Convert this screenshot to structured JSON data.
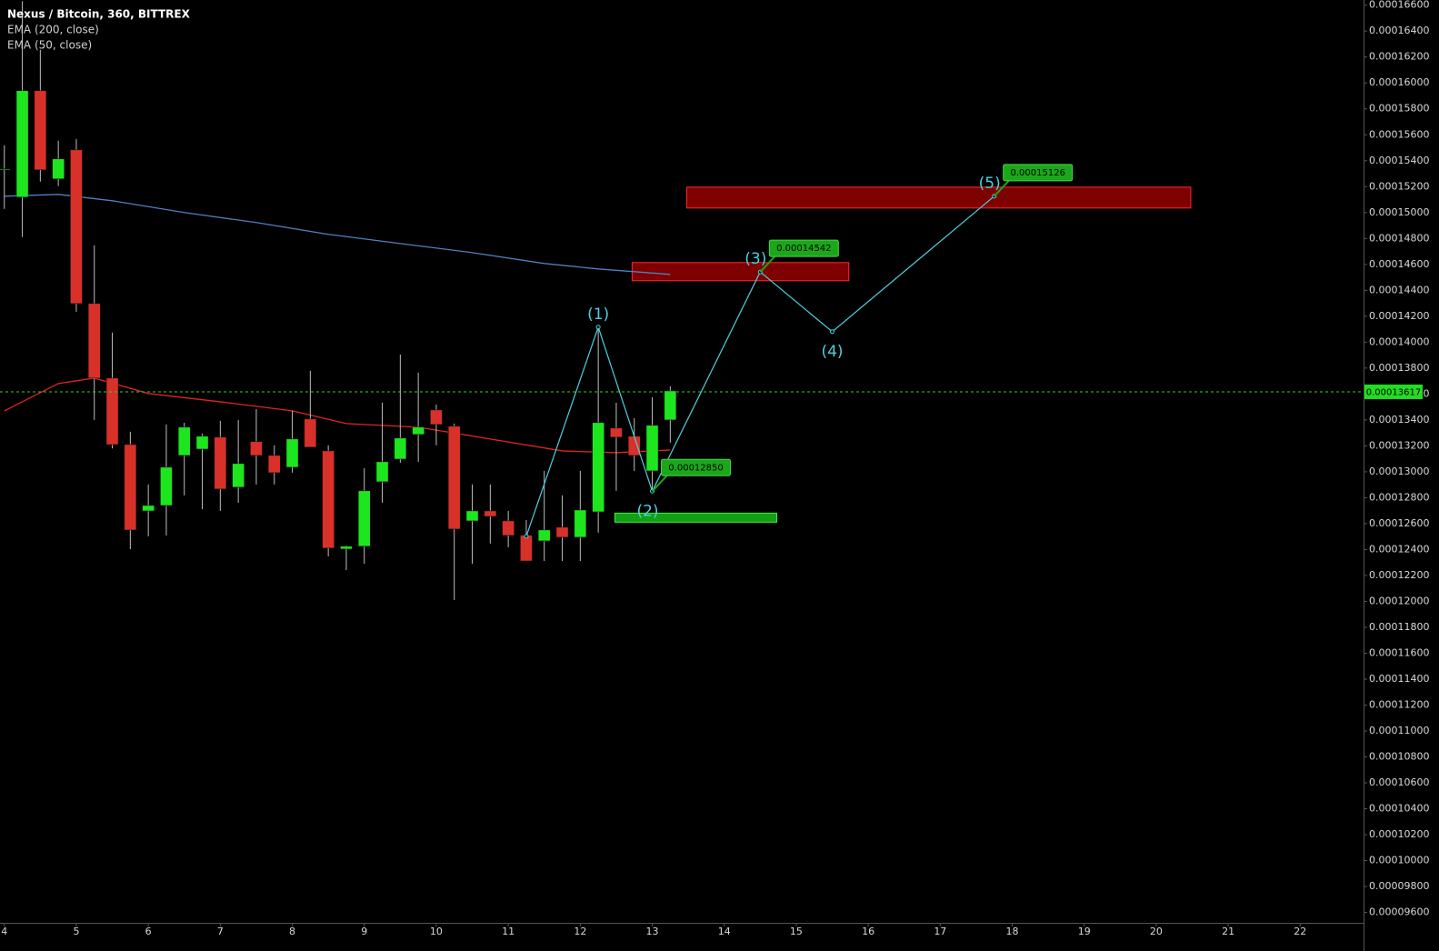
{
  "chart_data": {
    "type": "candlestick",
    "title": "Nexus / Bitcoin, 360, BITTREX",
    "x": [
      4,
      4.25,
      4.5,
      4.75,
      5,
      5.25,
      5.5,
      5.75,
      6,
      6.25,
      6.5,
      6.75,
      7,
      7.25,
      7.5,
      7.75,
      8,
      8.25,
      8.5,
      8.75,
      9,
      9.25,
      9.5,
      9.75,
      10,
      10.25,
      10.5,
      10.75,
      11,
      11.25,
      11.5,
      11.75,
      12,
      12.25,
      12.5,
      12.75,
      13,
      13.25
    ],
    "open": [
      0.0001533,
      0.00015119,
      0.0001594,
      0.0001526,
      0.00015484,
      0.00014298,
      0.00013723,
      0.0001321,
      0.00012698,
      0.0001274,
      0.00013126,
      0.00013175,
      0.00013267,
      0.00012881,
      0.00013232,
      0.00013126,
      0.00013035,
      0.00013407,
      0.00013161,
      0.00012404,
      0.00012425,
      0.00012923,
      0.00013098,
      0.00013288,
      0.00013477,
      0.00013351,
      0.00012621,
      0.00012698,
      0.00012621,
      0.00012509,
      0.00012467,
      0.00012572,
      0.00012495,
      0.00012691,
      0.00013337,
      0.00013274,
      0.00013007,
      0.000134
    ],
    "high": [
      0.00015519,
      0.0001663,
      0.00016256,
      0.00015554,
      0.00015568,
      0.00014747,
      0.00014074,
      0.00013309,
      0.00012902,
      0.00013365,
      0.00013379,
      0.00013295,
      0.00013393,
      0.000134,
      0.00013484,
      0.00013204,
      0.0001347,
      0.00013779,
      0.00013204,
      0.00012432,
      0.00013028,
      0.00013533,
      0.00013905,
      0.00013765,
      0.00013519,
      0.00013372,
      0.00012902,
      0.00012902,
      0.00012698,
      0.00012628,
      0.00013007,
      0.00012818,
      0.00013007,
      0.00014116,
      0.00013533,
      0.00013414,
      0.00013575,
      0.0001366
    ],
    "low": [
      0.00015028,
      0.00014811,
      0.00015239,
      0.00015204,
      0.00014235,
      0.000134,
      0.0001318,
      0.00012403,
      0.00012502,
      0.00012509,
      0.00012818,
      0.00012712,
      0.00012698,
      0.00012761,
      0.00012902,
      0.00012902,
      0.00012993,
      0.0001319,
      0.00012347,
      0.00012242,
      0.00012291,
      0.00012762,
      0.0001307,
      0.00013077,
      0.00013204,
      0.00012011,
      0.00012291,
      0.00012446,
      0.00012418,
      0.00012312,
      0.00012312,
      0.00012312,
      0.00012312,
      0.0001253,
      0.00012853,
      0.00013007,
      0.00012853,
      0.00013225
    ],
    "close": [
      0.00015337,
      0.0001594,
      0.0001533,
      0.00015414,
      0.00014298,
      0.00013723,
      0.0001321,
      0.00012551,
      0.0001274,
      0.00013035,
      0.00013344,
      0.00013274,
      0.00012867,
      0.00013063,
      0.00013126,
      0.00012993,
      0.00013253,
      0.0001319,
      0.00012411,
      0.00012425,
      0.00012853,
      0.00013077,
      0.0001326,
      0.00013344,
      0.00013365,
      0.00012558,
      0.00012698,
      0.00012656,
      0.00012509,
      0.00012312,
      0.00012551,
      0.00012495,
      0.00012705,
      0.00013379,
      0.00013267,
      0.00013126,
      0.00013358,
      0.00013624
    ],
    "up_color": "#1ee61e",
    "down_color": "#d8312a",
    "wick_color": "#bdbdbd",
    "series": [
      {
        "name": "EMA (200, close)",
        "color": "#4f7fc4",
        "x": [
          4,
          4.75,
          5.5,
          6.5,
          7.5,
          8.5,
          9.5,
          10.5,
          11.5,
          12.25,
          13.25
        ],
        "values": [
          0.00015126,
          0.0001514,
          0.00015091,
          0.00015,
          0.00014923,
          0.00014832,
          0.00014761,
          0.00014691,
          0.00014607,
          0.00014565,
          0.00014523
        ]
      },
      {
        "name": "EMA (50, close)",
        "color": "#e0261e",
        "x": [
          4,
          4.75,
          5.25,
          6,
          7,
          8,
          8.75,
          9.75,
          10.75,
          11.75,
          12.5,
          13.25
        ],
        "values": [
          0.0001347,
          0.00013681,
          0.00013723,
          0.00013604,
          0.0001354,
          0.0001347,
          0.00013372,
          0.00013344,
          0.00013253,
          0.00013161,
          0.00013147,
          0.00013168
        ]
      }
    ],
    "last_price": 0.00013617,
    "last_price_color": "#22dd22",
    "wave": {
      "color": "#4dd0e1",
      "x": [
        11.25,
        12.25,
        13,
        14.5,
        15.5,
        17.75
      ],
      "values": [
        0.00012502,
        0.00014116,
        0.0001285,
        0.00014542,
        0.00014081,
        0.00015126
      ],
      "labels": [
        null,
        "(1)",
        "(2)",
        "(3)",
        "(4)",
        "(5)"
      ],
      "value_labels": [
        null,
        null,
        "0.00012850",
        "0.00014542",
        null,
        "0.00015126"
      ]
    },
    "zones": [
      {
        "x": [
          12.72,
          15.73
        ],
        "y": [
          0.00014474,
          0.00014614
        ],
        "color": "#7f0000",
        "border": "#ff2a2a"
      },
      {
        "x": [
          13.48,
          20.48
        ],
        "y": [
          0.00015035,
          0.00015196
        ],
        "color": "#7f0000",
        "border": "#ff2a2a"
      },
      {
        "x": [
          12.48,
          14.73
        ],
        "y": [
          0.00012611,
          0.00012681
        ],
        "color": "#14a014",
        "border": "#3cf03c"
      }
    ],
    "xlim": [
      3.94,
      22.88
    ],
    "xticks": [
      4,
      5,
      6,
      7,
      8,
      9,
      10,
      11,
      12,
      13,
      14,
      15,
      16,
      17,
      18,
      19,
      20,
      21,
      22
    ],
    "ylim": [
      9.52e-05,
      0.0001664
    ],
    "yticks": [
      {
        "value": 0.000166,
        "label": "0.00016600"
      },
      {
        "value": 0.000164,
        "label": "0.00016400"
      },
      {
        "value": 0.000162,
        "label": "0.00016200"
      },
      {
        "value": 0.00016,
        "label": "0.00016000"
      },
      {
        "value": 0.000158,
        "label": "0.00015800"
      },
      {
        "value": 0.000156,
        "label": "0.00015600"
      },
      {
        "value": 0.000154,
        "label": "0.00015400"
      },
      {
        "value": 0.000152,
        "label": "0.00015200"
      },
      {
        "value": 0.00015,
        "label": "0.00015000"
      },
      {
        "value": 0.000148,
        "label": "0.00014800"
      },
      {
        "value": 0.000146,
        "label": "0.00014600"
      },
      {
        "value": 0.000144,
        "label": "0.00014400"
      },
      {
        "value": 0.000142,
        "label": "0.00014200"
      },
      {
        "value": 0.00014,
        "label": "0.00014000"
      },
      {
        "value": 0.000138,
        "label": "0.00013800"
      },
      {
        "value": 0.000136,
        "label": "0.00013600"
      },
      {
        "value": 0.000134,
        "label": "0.00013400"
      },
      {
        "value": 0.000132,
        "label": "0.00013200"
      },
      {
        "value": 0.00013,
        "label": "0.00013000"
      },
      {
        "value": 0.000128,
        "label": "0.00012800"
      },
      {
        "value": 0.000126,
        "label": "0.00012600"
      },
      {
        "value": 0.000124,
        "label": "0.00012400"
      },
      {
        "value": 0.000122,
        "label": "0.00012200"
      },
      {
        "value": 0.00012,
        "label": "0.00012000"
      },
      {
        "value": 0.000118,
        "label": "0.00011800"
      },
      {
        "value": 0.000116,
        "label": "0.00011600"
      },
      {
        "value": 0.000114,
        "label": "0.00011400"
      },
      {
        "value": 0.000112,
        "label": "0.00011200"
      },
      {
        "value": 0.00011,
        "label": "0.00011000"
      },
      {
        "value": 0.000108,
        "label": "0.00010800"
      },
      {
        "value": 0.000106,
        "label": "0.00010600"
      },
      {
        "value": 0.000104,
        "label": "0.00010400"
      },
      {
        "value": 0.000102,
        "label": "0.00010200"
      },
      {
        "value": 0.0001,
        "label": "0.00010000"
      },
      {
        "value": 9.8e-05,
        "label": "0.00009800"
      },
      {
        "value": 9.6e-05,
        "label": "0.00009600"
      }
    ],
    "grid": false
  }
}
